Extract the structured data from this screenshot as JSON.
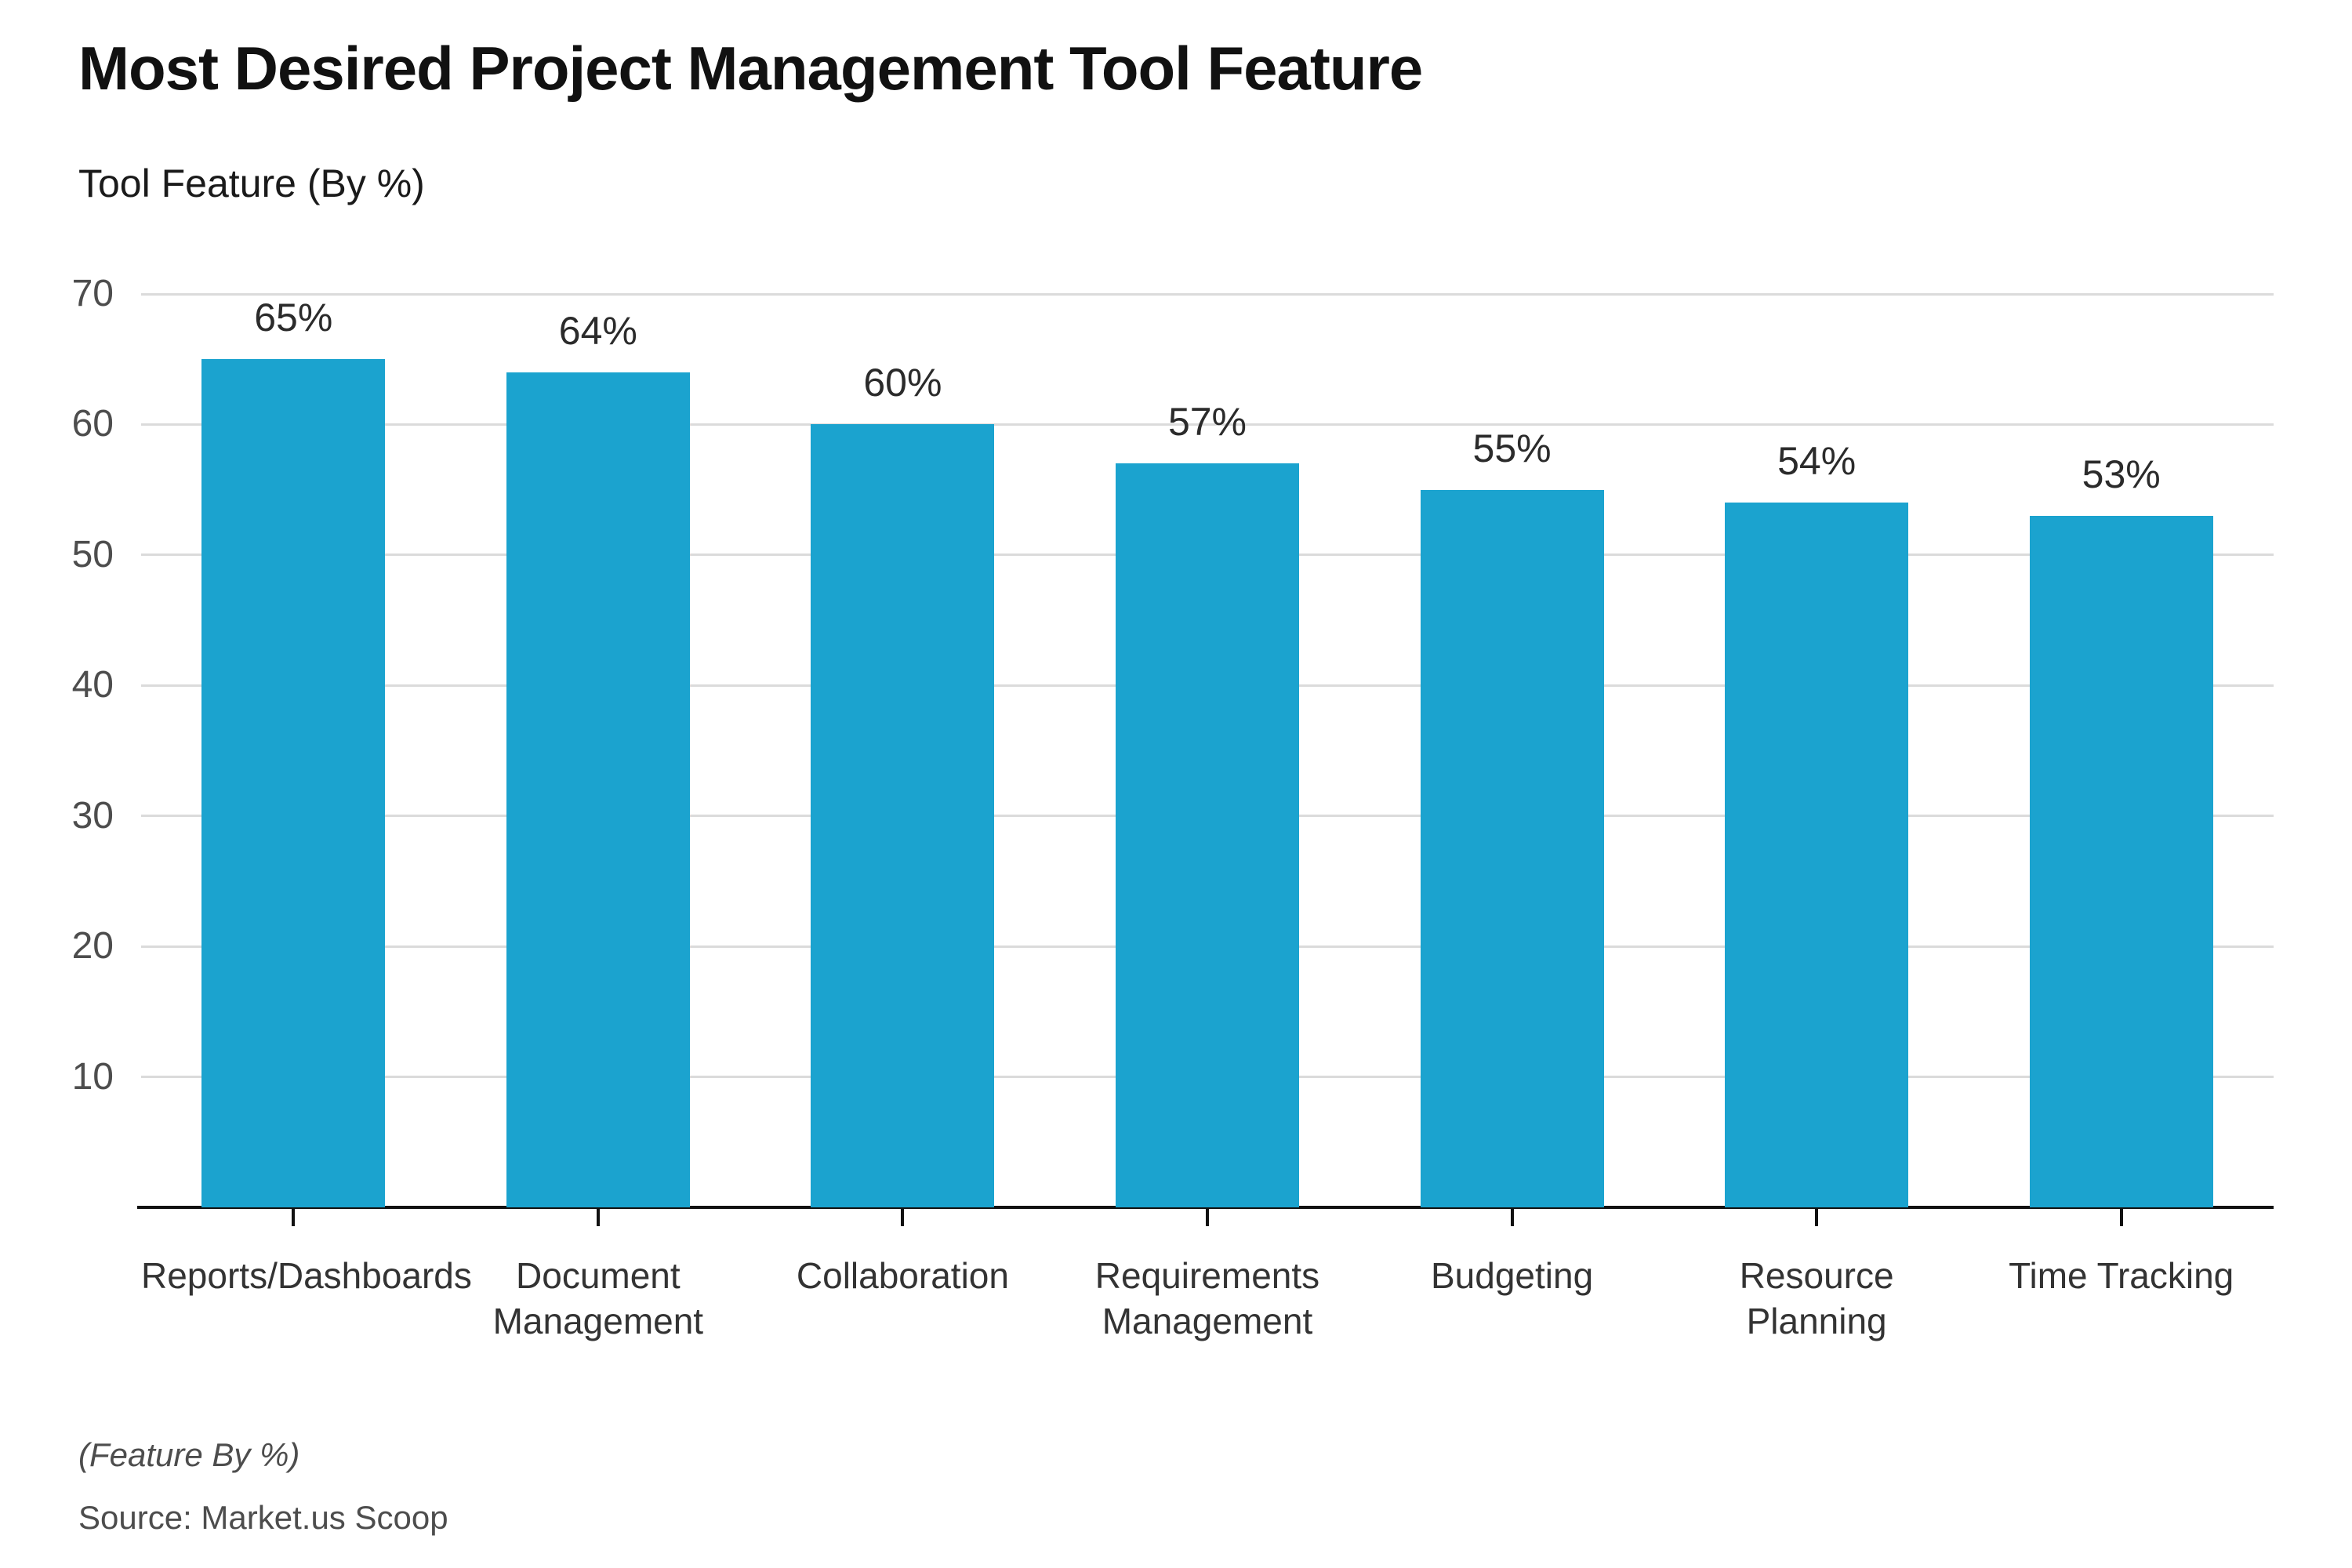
{
  "header": {
    "title": "Most Desired Project Management Tool Feature",
    "subtitle": "Tool Feature (By %)"
  },
  "footer": {
    "note": "(Feature By %)",
    "source": "Source: Market.us Scoop"
  },
  "colors": {
    "bar": "#1BA3CF",
    "grid": "#DBDBDB",
    "axis": "#111111",
    "y_tick_label": "#4D4D4D",
    "data_label": "#2B2B2B",
    "x_label": "#333333"
  },
  "chart_data": {
    "type": "bar",
    "title": "Most Desired Project Management Tool Feature",
    "subtitle": "Tool Feature (By %)",
    "categories": [
      "Reports/Dashboards",
      "Document Management",
      "Collaboration",
      "Requirements Management",
      "Budgeting",
      "Resource Planning",
      "Time Tracking"
    ],
    "category_display": [
      "Reports/Dashboards",
      "Document\nManagement",
      "Collaboration",
      "Requirements\nManagement",
      "Budgeting",
      "Resource\nPlanning",
      "Time Tracking"
    ],
    "values": [
      65,
      64,
      60,
      57,
      55,
      54,
      53
    ],
    "data_labels": [
      "65%",
      "64%",
      "60%",
      "57%",
      "55%",
      "54%",
      "53%"
    ],
    "xlabel": "",
    "ylabel": "Tool Feature (By %)",
    "ylim": [
      0,
      70
    ],
    "yticks": [
      10,
      20,
      30,
      40,
      50,
      60,
      70
    ],
    "grid": "horizontal",
    "legend": "none",
    "bar_color": "#1BA3CF",
    "footnote": "(Feature By %)",
    "source": "Source: Market.us Scoop"
  }
}
